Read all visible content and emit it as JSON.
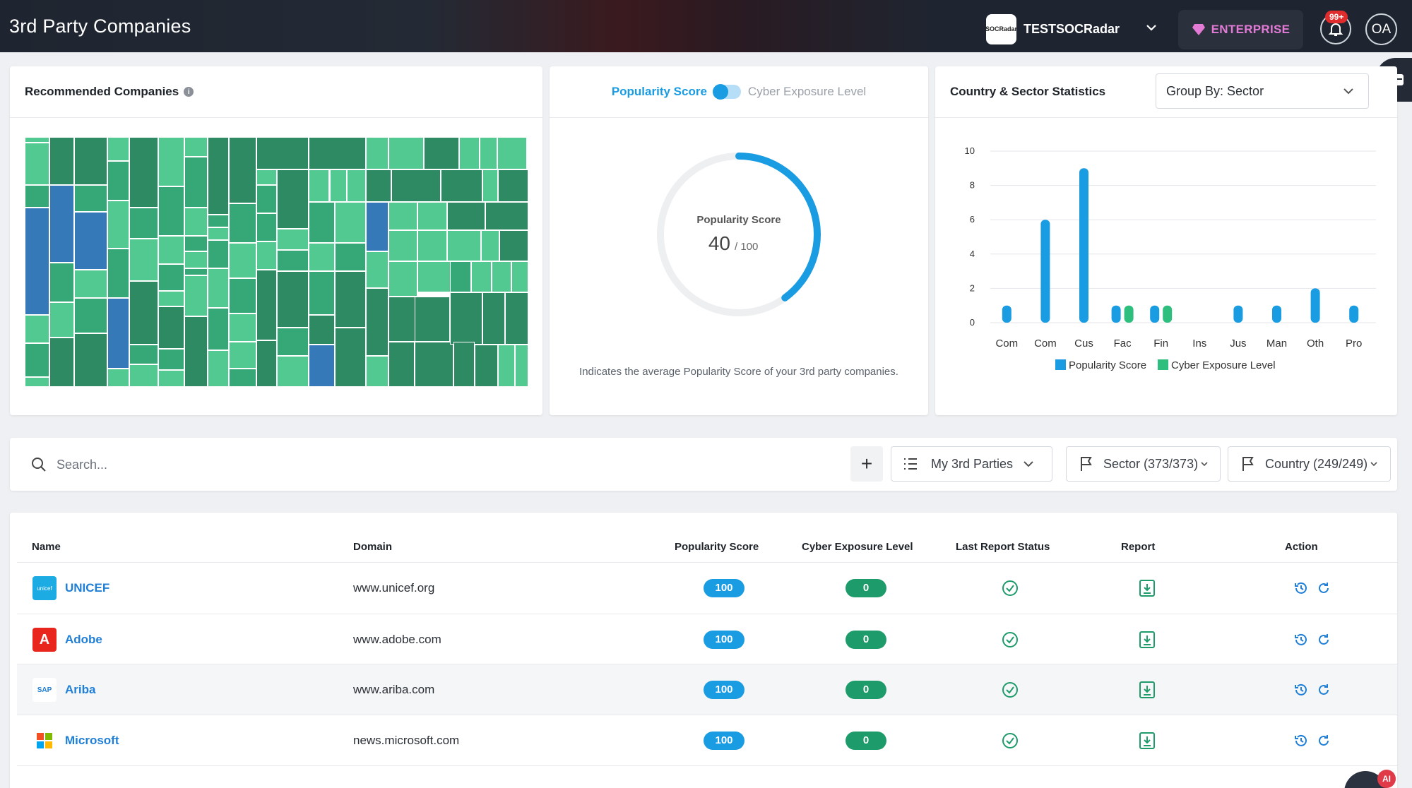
{
  "header": {
    "title": "3rd Party Companies",
    "org_logo_text": "SOCRadar",
    "org_name": "TESTSOCRadar",
    "enterprise_label": "ENTERPRISE",
    "notification_badge": "99+",
    "avatar_initials": "OA"
  },
  "recommended": {
    "title": "Recommended Companies",
    "info": "i"
  },
  "gauge": {
    "toggle_on": "Popularity Score",
    "toggle_off": "Cyber Exposure Level",
    "center_label": "Popularity Score",
    "value": "40",
    "max": "/ 100",
    "fraction": 0.4,
    "note": "Indicates the average Popularity Score of your 3rd party companies.",
    "color": "#1a9ce2"
  },
  "stats": {
    "title": "Country & Sector Statistics",
    "group_by": "Group By: Sector"
  },
  "chart_data": {
    "type": "bar",
    "categories": [
      "Com",
      "Com",
      "Cus",
      "Fac",
      "Fin",
      "Ins",
      "Jus",
      "Man",
      "Oth",
      "Pro"
    ],
    "series": [
      {
        "name": "Popularity Score",
        "color": "#1a9ce2",
        "values": [
          1,
          6,
          9,
          1,
          1,
          0,
          1,
          1,
          2,
          1
        ]
      },
      {
        "name": "Cyber Exposure Level",
        "color": "#2ebf7e",
        "values": [
          0,
          0,
          0,
          1,
          1,
          0,
          0,
          0,
          0,
          0
        ]
      }
    ],
    "yticks": [
      "0",
      "2",
      "4",
      "6",
      "8",
      "10"
    ],
    "ylim": [
      0,
      10
    ],
    "legend": "bottom",
    "grid": true
  },
  "toolbar": {
    "search_placeholder": "Search...",
    "add_label": "+",
    "filter_label": "My 3rd Parties",
    "sector_label": "Sector (373/373)",
    "country_label": "Country (249/249)"
  },
  "table": {
    "headers": {
      "name": "Name",
      "domain": "Domain",
      "popularity": "Popularity Score",
      "exposure": "Cyber Exposure Level",
      "last_report": "Last Report Status",
      "report": "Report",
      "action": "Action"
    },
    "rows": [
      {
        "name": "UNICEF",
        "domain": "www.unicef.org",
        "popularity": "100",
        "exposure": "0",
        "logo": "unicef-logo",
        "logo_text": "unicef"
      },
      {
        "name": "Adobe",
        "domain": "www.adobe.com",
        "popularity": "100",
        "exposure": "0",
        "logo": "adobe-logo",
        "logo_text": "A"
      },
      {
        "name": "Ariba",
        "domain": "www.ariba.com",
        "popularity": "100",
        "exposure": "0",
        "logo": "sap-logo",
        "logo_text": "SAP"
      },
      {
        "name": "Microsoft",
        "domain": "news.microsoft.com",
        "popularity": "100",
        "exposure": "0",
        "logo": "microsoft-logo",
        "logo_text": ""
      }
    ]
  },
  "ai_badge": "AI"
}
